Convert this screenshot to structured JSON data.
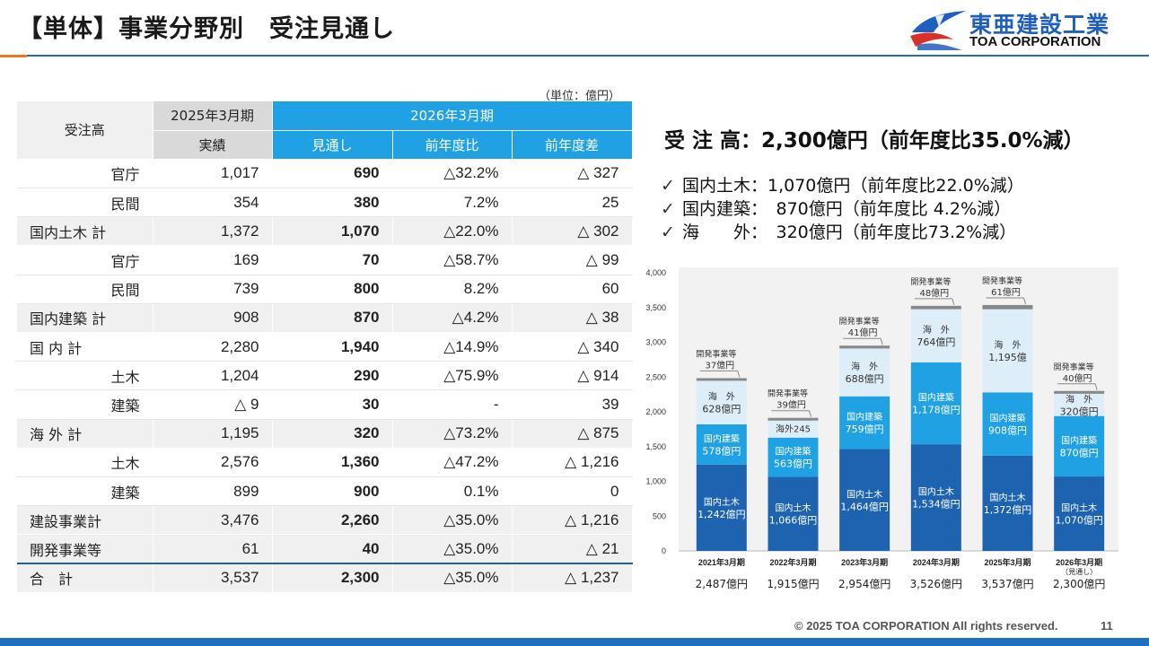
{
  "page": {
    "title": "【単体】事業分野別　受注見通し",
    "footer": "© 2025 TOA CORPORATION  All rights reserved.",
    "page_number": "11",
    "colors": {
      "accent_blue": "#1fa1e4",
      "header_blue": "#1f6fc0",
      "orange": "#f0781e"
    }
  },
  "logo": {
    "jp": "東亜建設工業",
    "en": "TOA CORPORATION",
    "icon": "toa-bird-logo-icon"
  },
  "table": {
    "unit": "（単位：億円）",
    "header": {
      "label": "受注高",
      "period_2025": "2025年3月期",
      "period_2026": "2026年3月期",
      "actual": "実績",
      "forecast": "見通し",
      "yoy": "前年度比",
      "diff": "前年度差"
    },
    "rows": [
      {
        "label": "官庁",
        "actual": "1,017",
        "forecast": "690",
        "yoy": "△32.2%",
        "diff": "△ 327"
      },
      {
        "label": "民間",
        "actual": "354",
        "forecast": "380",
        "yoy": "7.2%",
        "diff": "25"
      },
      {
        "label": "国内土木 計",
        "actual": "1,372",
        "forecast": "1,070",
        "yoy": "△22.0%",
        "diff": "△ 302"
      },
      {
        "label": "官庁",
        "actual": "169",
        "forecast": "70",
        "yoy": "△58.7%",
        "diff": "△ 99"
      },
      {
        "label": "民間",
        "actual": "739",
        "forecast": "800",
        "yoy": "8.2%",
        "diff": "60"
      },
      {
        "label": "国内建築 計",
        "actual": "908",
        "forecast": "870",
        "yoy": "△4.2%",
        "diff": "△ 38"
      },
      {
        "label": "国 内 計",
        "actual": "2,280",
        "forecast": "1,940",
        "yoy": "△14.9%",
        "diff": "△ 340"
      },
      {
        "label": "土木",
        "actual": "1,204",
        "forecast": "290",
        "yoy": "△75.9%",
        "diff": "△ 914"
      },
      {
        "label": "建築",
        "actual": "△ 9",
        "forecast": "30",
        "yoy": "-",
        "diff": "39"
      },
      {
        "label": "海 外 計",
        "actual": "1,195",
        "forecast": "320",
        "yoy": "△73.2%",
        "diff": "△ 875"
      },
      {
        "label": "土木",
        "actual": "2,576",
        "forecast": "1,360",
        "yoy": "△47.2%",
        "diff": "△ 1,216"
      },
      {
        "label": "建築",
        "actual": "899",
        "forecast": "900",
        "yoy": "0.1%",
        "diff": "0"
      },
      {
        "label": "建設事業計",
        "actual": "3,476",
        "forecast": "2,260",
        "yoy": "△35.0%",
        "diff": "△ 1,216"
      },
      {
        "label": "開発事業等",
        "actual": "61",
        "forecast": "40",
        "yoy": "△35.0%",
        "diff": "△ 21"
      },
      {
        "label": "合　計",
        "actual": "3,537",
        "forecast": "2,300",
        "yoy": "△35.0%",
        "diff": "△ 1,237"
      }
    ]
  },
  "summary": {
    "headline": "受 注 高：2,300億円（前年度比35.0%減）",
    "check_icon": "checkmark-icon",
    "bullets": [
      "国内土木：1,070億円（前年度比22.0%減）",
      "国内建築：　870億円（前年度比 4.2%減）",
      "海　　外：　320億円（前年度比73.2%減）"
    ]
  },
  "chart_data": {
    "type": "bar",
    "stacked": true,
    "ylim": [
      0,
      4000
    ],
    "yticks": [
      "0",
      "500",
      "1,000",
      "1,500",
      "2,000",
      "2,500",
      "3,000",
      "3,500",
      "4,000"
    ],
    "grid": false,
    "categories": [
      "2021年3月期",
      "2022年3月期",
      "2023年3月期",
      "2024年3月期",
      "2025年3月期",
      "2026年3月期"
    ],
    "category_notes": [
      "",
      "",
      "",
      "",
      "",
      "（見通し）"
    ],
    "totals": [
      "2,487億円",
      "1,915億円",
      "2,954億円",
      "3,526億円",
      "3,537億円",
      "2,300億円"
    ],
    "series": [
      {
        "name": "国内土木",
        "color": "#1e63b0",
        "values": [
          1242,
          1066,
          1464,
          1534,
          1372,
          1070
        ],
        "labels": [
          "1,242億円",
          "1,066億円",
          "1,464億円",
          "1,534億円",
          "1,372億円",
          "1,070億円"
        ]
      },
      {
        "name": "国内建築",
        "color": "#1fa1e4",
        "values": [
          578,
          563,
          759,
          1178,
          908,
          870
        ],
        "labels": [
          "578億円",
          "563億円",
          "759億円",
          "1,178億円",
          "908億円",
          "870億円"
        ]
      },
      {
        "name": "海　外",
        "color": "#ddeef8",
        "values": [
          628,
          245,
          688,
          764,
          1195,
          320
        ],
        "labels": [
          "628億円",
          "245億円",
          "688億円",
          "764億円",
          "1,195億",
          "320億円"
        ]
      },
      {
        "name": "開発事業等",
        "color": "#888888",
        "values": [
          37,
          39,
          41,
          48,
          61,
          40
        ],
        "labels": [
          "37億円",
          "39億円",
          "41億円",
          "48億円",
          "61億円",
          "40億円"
        ]
      }
    ]
  }
}
